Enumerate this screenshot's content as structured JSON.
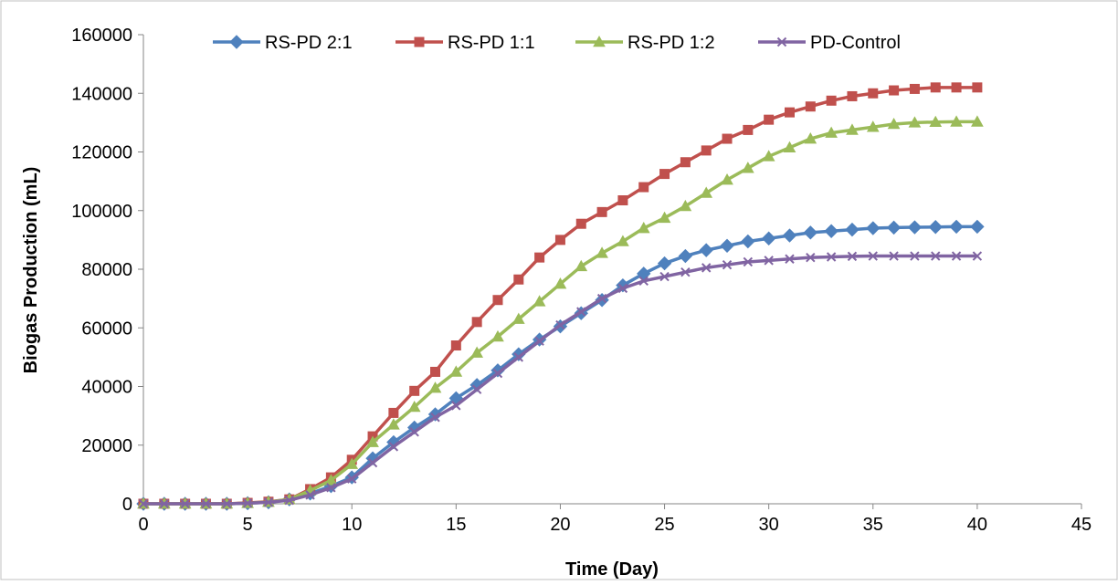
{
  "chart_data": {
    "type": "line",
    "title": "",
    "xlabel": "Time (Day)",
    "ylabel": "Biogas Production (mL)",
    "xlim": [
      0,
      45
    ],
    "ylim": [
      0,
      160000
    ],
    "x_ticks": [
      0,
      5,
      10,
      15,
      20,
      25,
      30,
      35,
      40,
      45
    ],
    "y_ticks": [
      0,
      20000,
      40000,
      60000,
      80000,
      100000,
      120000,
      140000,
      160000
    ],
    "grid": false,
    "legend_position": "top",
    "x": [
      0,
      1,
      2,
      3,
      4,
      5,
      6,
      7,
      8,
      9,
      10,
      11,
      12,
      13,
      14,
      15,
      16,
      17,
      18,
      19,
      20,
      21,
      22,
      23,
      24,
      25,
      26,
      27,
      28,
      29,
      30,
      31,
      32,
      33,
      34,
      35,
      36,
      37,
      38,
      39,
      40
    ],
    "series": [
      {
        "name": "RS-PD 2:1",
        "color": "#4F81BD",
        "marker": "diamond",
        "values": [
          0,
          0,
          0,
          0,
          0,
          200,
          500,
          1500,
          3500,
          6000,
          9000,
          15500,
          21000,
          26000,
          30500,
          36000,
          40500,
          45500,
          51000,
          56000,
          60500,
          65000,
          69500,
          74500,
          78500,
          82000,
          84500,
          86500,
          88000,
          89500,
          90500,
          91500,
          92500,
          93000,
          93500,
          94000,
          94200,
          94300,
          94400,
          94500,
          94500
        ]
      },
      {
        "name": "RS-PD 1:1",
        "color": "#C0504D",
        "marker": "square",
        "values": [
          0,
          0,
          0,
          0,
          0,
          300,
          700,
          1500,
          5000,
          9000,
          15000,
          23000,
          31000,
          38500,
          45000,
          54000,
          62000,
          69500,
          76500,
          84000,
          90000,
          95500,
          99500,
          103500,
          108000,
          112500,
          116500,
          120500,
          124500,
          127500,
          131000,
          133500,
          135500,
          137500,
          139000,
          140000,
          141000,
          141500,
          142000,
          142000,
          142000
        ]
      },
      {
        "name": "RS-PD 1:2",
        "color": "#9BBB59",
        "marker": "triangle",
        "values": [
          0,
          0,
          0,
          0,
          0,
          200,
          600,
          1500,
          4500,
          8000,
          13500,
          21000,
          27000,
          33000,
          39500,
          45000,
          51500,
          57000,
          63000,
          69000,
          75000,
          81000,
          85500,
          89500,
          94000,
          97500,
          101500,
          106000,
          110500,
          114500,
          118500,
          121500,
          124500,
          126500,
          127500,
          128500,
          129500,
          130000,
          130200,
          130300,
          130300
        ]
      },
      {
        "name": "PD-Control",
        "color": "#8064A2",
        "marker": "x",
        "values": [
          0,
          0,
          0,
          0,
          0,
          200,
          500,
          1200,
          3000,
          5500,
          8500,
          14000,
          19500,
          24500,
          29500,
          33500,
          39000,
          44500,
          50000,
          55500,
          61000,
          65500,
          70000,
          73500,
          76000,
          77500,
          79000,
          80500,
          81500,
          82500,
          83000,
          83500,
          84000,
          84200,
          84400,
          84500,
          84500,
          84500,
          84500,
          84500,
          84500
        ]
      }
    ]
  }
}
